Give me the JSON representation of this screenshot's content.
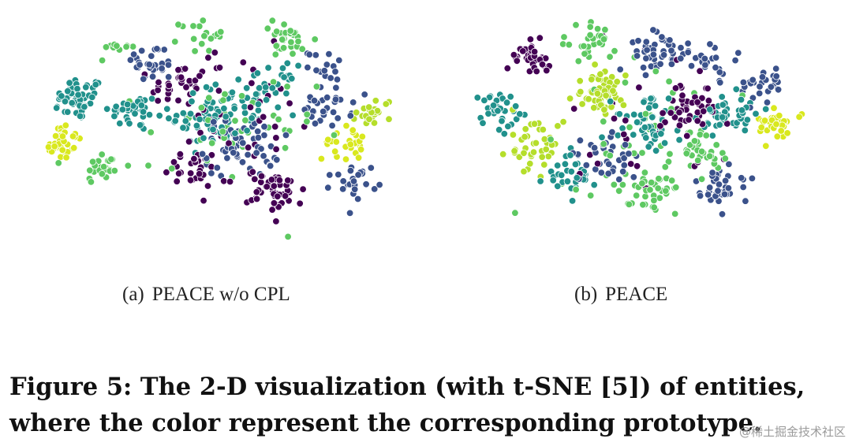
{
  "figure": {
    "caption_lines": [
      "Figure 5: The 2-D visualization (with t-SNE [5]) of entities,",
      "where the color represent the corresponding prototype."
    ],
    "watermark": "@稀土掘金技术社区"
  },
  "palette": [
    "#440154",
    "#3b528b",
    "#21918c",
    "#5ec962",
    "#b5de2b",
    "#d9e81e"
  ],
  "chart_data": [
    {
      "type": "scatter",
      "subcaption_label": "(a)",
      "subcaption_title": "PEACE w/o CPL",
      "color_encoding": "prototype",
      "axes_visible": false,
      "clusters": [
        {
          "cx": -5.2,
          "cy": 1.6,
          "n": 55,
          "spread": 0.9,
          "color": 2
        },
        {
          "cx": -5.9,
          "cy": -0.3,
          "n": 40,
          "spread": 0.8,
          "color": 5
        },
        {
          "cx": -4.3,
          "cy": -1.5,
          "n": 25,
          "spread": 0.7,
          "color": 3
        },
        {
          "cx": -3.2,
          "cy": 1.0,
          "n": 35,
          "spread": 0.8,
          "color": 2
        },
        {
          "cx": -2.6,
          "cy": 3.2,
          "n": 30,
          "spread": 0.8,
          "color": 1
        },
        {
          "cx": -1.6,
          "cy": 2.2,
          "n": 30,
          "spread": 0.9,
          "color": 0
        },
        {
          "cx": -3.8,
          "cy": 4.1,
          "n": 15,
          "spread": 0.6,
          "color": 3
        },
        {
          "cx": -0.8,
          "cy": 4.5,
          "n": 20,
          "spread": 0.7,
          "color": 3
        },
        {
          "cx": -0.5,
          "cy": 0.8,
          "n": 70,
          "spread": 1.3,
          "color": 2
        },
        {
          "cx": 0.6,
          "cy": -0.6,
          "n": 60,
          "spread": 1.2,
          "color": 1
        },
        {
          "cx": -1.2,
          "cy": -1.6,
          "n": 30,
          "spread": 0.9,
          "color": 0
        },
        {
          "cx": 1.4,
          "cy": 2.0,
          "n": 40,
          "spread": 1.0,
          "color": 2
        },
        {
          "cx": 2.3,
          "cy": 4.4,
          "n": 40,
          "spread": 0.9,
          "color": 3
        },
        {
          "cx": 1.8,
          "cy": -2.6,
          "n": 45,
          "spread": 0.9,
          "color": 0
        },
        {
          "cx": 3.6,
          "cy": 1.2,
          "n": 30,
          "spread": 0.8,
          "color": 1
        },
        {
          "cx": 4.2,
          "cy": -0.4,
          "n": 30,
          "spread": 0.7,
          "color": 5
        },
        {
          "cx": 5.3,
          "cy": 1.0,
          "n": 25,
          "spread": 0.6,
          "color": 4
        },
        {
          "cx": 4.6,
          "cy": -2.1,
          "n": 25,
          "spread": 0.7,
          "color": 1
        },
        {
          "cx": 3.6,
          "cy": 3.1,
          "n": 15,
          "spread": 0.6,
          "color": 1
        },
        {
          "cx": 0.2,
          "cy": -0.2,
          "n": 40,
          "spread": 2.7,
          "color": 3
        },
        {
          "cx": 0.5,
          "cy": 0.6,
          "n": 40,
          "spread": 3.0,
          "color": 0
        }
      ]
    },
    {
      "type": "scatter",
      "subcaption_label": "(b)",
      "subcaption_title": "PEACE",
      "color_encoding": "prototype",
      "axes_visible": false,
      "clusters": [
        {
          "cx": -3.6,
          "cy": 3.5,
          "n": 35,
          "spread": 0.8,
          "color": 0
        },
        {
          "cx": -1.3,
          "cy": 1.8,
          "n": 55,
          "spread": 0.8,
          "color": 4
        },
        {
          "cx": -1.5,
          "cy": 4.2,
          "n": 25,
          "spread": 0.8,
          "color": 3
        },
        {
          "cx": -4.8,
          "cy": 1.2,
          "n": 35,
          "spread": 0.9,
          "color": 2
        },
        {
          "cx": -3.6,
          "cy": -0.6,
          "n": 40,
          "spread": 1.0,
          "color": 4
        },
        {
          "cx": -2.2,
          "cy": -1.8,
          "n": 35,
          "spread": 0.9,
          "color": 2
        },
        {
          "cx": 0.4,
          "cy": 0.4,
          "n": 50,
          "spread": 1.1,
          "color": 2
        },
        {
          "cx": 0.6,
          "cy": 3.7,
          "n": 40,
          "spread": 0.9,
          "color": 1
        },
        {
          "cx": 2.0,
          "cy": 1.3,
          "n": 35,
          "spread": 0.8,
          "color": 0
        },
        {
          "cx": 2.6,
          "cy": 3.4,
          "n": 30,
          "spread": 0.8,
          "color": 1
        },
        {
          "cx": 3.3,
          "cy": 0.8,
          "n": 45,
          "spread": 0.9,
          "color": 2
        },
        {
          "cx": 5.0,
          "cy": 0.4,
          "n": 35,
          "spread": 0.6,
          "color": 5
        },
        {
          "cx": 4.6,
          "cy": 2.3,
          "n": 25,
          "spread": 0.7,
          "color": 1
        },
        {
          "cx": 2.4,
          "cy": -0.8,
          "n": 30,
          "spread": 0.8,
          "color": 3
        },
        {
          "cx": 0.6,
          "cy": -2.6,
          "n": 45,
          "spread": 0.9,
          "color": 3
        },
        {
          "cx": 3.0,
          "cy": -2.4,
          "n": 40,
          "spread": 0.9,
          "color": 1
        },
        {
          "cx": -0.8,
          "cy": -0.9,
          "n": 35,
          "spread": 1.0,
          "color": 1
        },
        {
          "cx": 0.0,
          "cy": 0.0,
          "n": 40,
          "spread": 3.0,
          "color": 3
        },
        {
          "cx": 0.3,
          "cy": 0.5,
          "n": 35,
          "spread": 3.0,
          "color": 0
        }
      ]
    }
  ]
}
